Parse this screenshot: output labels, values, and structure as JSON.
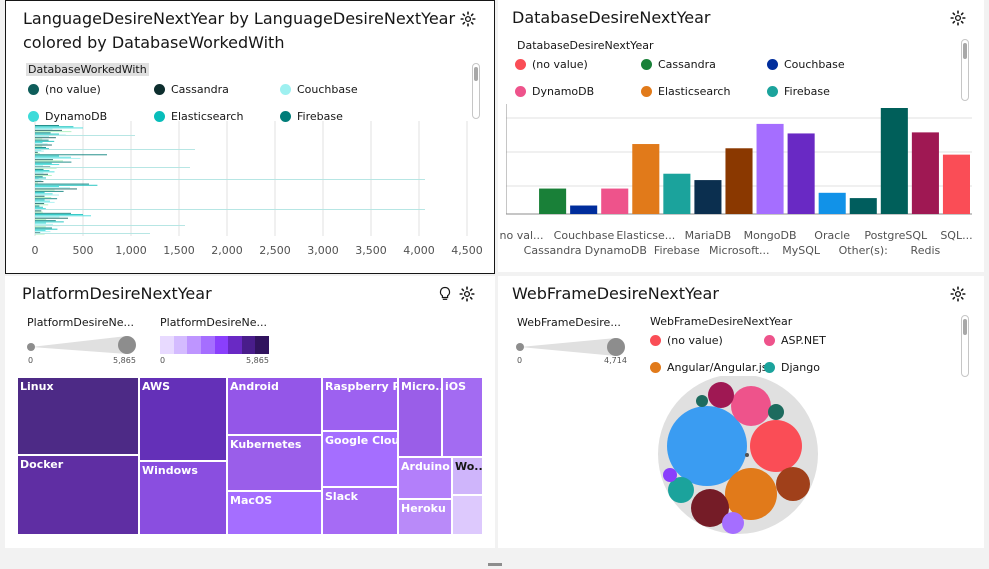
{
  "panel1": {
    "title_line1": "LanguageDesireNextYear by LanguageDesireNextYear",
    "title_line2": "colored by DatabaseWorkedWith",
    "legend_title": "DatabaseWorkedWith",
    "legend": [
      {
        "label": "(no value)",
        "color": "#0e5d5a"
      },
      {
        "label": "Cassandra",
        "color": "#0d2e2e"
      },
      {
        "label": "Couchbase",
        "color": "#9ef0f0"
      },
      {
        "label": "DynamoDB",
        "color": "#3ddbd9"
      },
      {
        "label": "Elasticsearch",
        "color": "#08bdba"
      },
      {
        "label": "Firebase",
        "color": "#007d79"
      }
    ],
    "x_ticks": [
      "0",
      "500",
      "1,000",
      "1,500",
      "2,000",
      "2,500",
      "3,000",
      "3,500",
      "4,000",
      "4,500"
    ]
  },
  "panel2": {
    "title": "DatabaseDesireNextYear",
    "legend_title": "DatabaseDesireNextYear",
    "legend": [
      {
        "label": "(no value)",
        "color": "#fa4d56"
      },
      {
        "label": "Cassandra",
        "color": "#198038"
      },
      {
        "label": "Couchbase",
        "color": "#002d9c"
      },
      {
        "label": "DynamoDB",
        "color": "#ee538b"
      },
      {
        "label": "Elasticsearch",
        "color": "#e17a1a"
      },
      {
        "label": "Firebase",
        "color": "#1ba39c"
      }
    ],
    "x_labels_top": [
      "no val...",
      "Couchbase",
      "Elasticse...",
      "MariaDB",
      "MongoDB",
      "Oracle",
      "PostgreSQL",
      "SQL..."
    ],
    "x_labels_bottom": [
      "Cassandra",
      "DynamoDB",
      "Firebase",
      "Microsoft...",
      "MySQL",
      "Other(s):",
      "Redis"
    ]
  },
  "chart_data": {
    "type": "bar",
    "title": "DatabaseDesireNextYear",
    "categories": [
      "(no value)",
      "Cassandra",
      "Couchbase",
      "DynamoDB",
      "Elasticsearch",
      "Firebase",
      "MariaDB",
      "Microsoft...",
      "MongoDB",
      "MySQL",
      "Oracle",
      "Other(s):",
      "PostgreSQL",
      "Redis",
      "SQL..."
    ],
    "values": [
      0,
      24,
      8,
      24,
      66,
      38,
      32,
      62,
      85,
      76,
      20,
      15,
      100,
      77,
      56
    ],
    "colors": [
      "#fa4d56",
      "#198038",
      "#002d9c",
      "#ee538b",
      "#e17a1a",
      "#1ba39c",
      "#0b2f4f",
      "#8a3800",
      "#a56eff",
      "#6929c4",
      "#1192e8",
      "#005d5d",
      "#005f5a",
      "#9f1853",
      "#fa4d56"
    ]
  },
  "panel3": {
    "title": "PlatformDesireNextYear",
    "size_legend_title": "PlatformDesireNe...",
    "color_legend_title": "PlatformDesireNe...",
    "size_min": "0",
    "size_max": "5,865",
    "color_min": "0",
    "color_max": "5,865",
    "tiles": [
      "Linux",
      "Docker",
      "AWS",
      "Windows",
      "Android",
      "Kubernetes",
      "MacOS",
      "Raspberry Pi",
      "Google Clou...",
      "Slack",
      "Micro...",
      "iOS",
      "Arduino",
      "Wo...",
      "Heroku"
    ]
  },
  "panel4": {
    "title": "WebFrameDesireNextYear",
    "size_legend_title": "WebFrameDesire...",
    "size_min": "0",
    "size_max": "4,714",
    "legend_title": "WebFrameDesireNextYear",
    "legend": [
      {
        "label": "(no value)",
        "color": "#fa4d56"
      },
      {
        "label": "ASP.NET",
        "color": "#ee538b"
      },
      {
        "label": "Angular/Angular.js",
        "color": "#e17a1a"
      },
      {
        "label": "Django",
        "color": "#1ba39c"
      }
    ]
  }
}
